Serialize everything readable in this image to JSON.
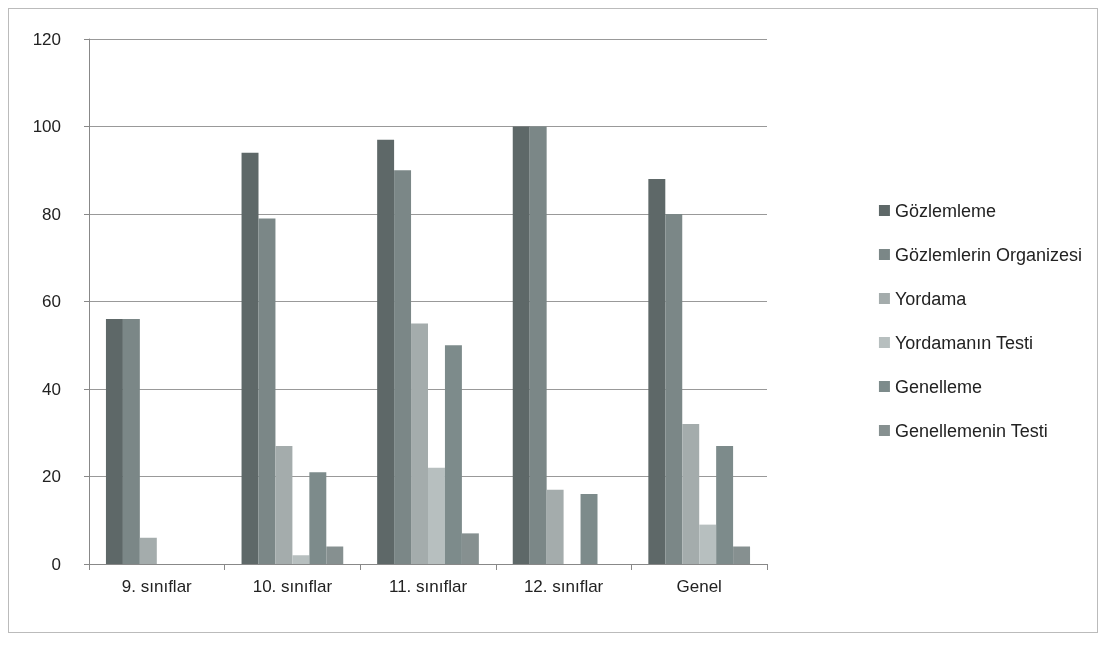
{
  "chart_data": {
    "type": "bar",
    "categories": [
      "9. sınıflar",
      "10. sınıflar",
      "11. sınıflar",
      "12. sınıflar",
      "Genel"
    ],
    "series": [
      {
        "name": "Gözlemleme",
        "color": "#5e6868",
        "values": [
          56,
          94,
          97,
          100,
          88
        ]
      },
      {
        "name": "Gözlemlerin Organizesi",
        "color": "#7b8787",
        "values": [
          56,
          79,
          90,
          100,
          80
        ]
      },
      {
        "name": "Yordama",
        "color": "#a4acac",
        "values": [
          6,
          27,
          55,
          17,
          32
        ]
      },
      {
        "name": "Yordamanın Testi",
        "color": "#b7bfbf",
        "values": [
          0,
          2,
          22,
          0,
          9
        ]
      },
      {
        "name": "Genelleme",
        "color": "#7d8b8b",
        "values": [
          0,
          21,
          50,
          16,
          27
        ]
      },
      {
        "name": "Genellemenin Testi",
        "color": "#869090",
        "values": [
          0,
          4,
          7,
          0,
          4
        ]
      }
    ],
    "ylim": [
      0,
      120
    ],
    "yticks": [
      0,
      20,
      40,
      60,
      80,
      100,
      120
    ],
    "grid": "y",
    "legend": "right"
  }
}
